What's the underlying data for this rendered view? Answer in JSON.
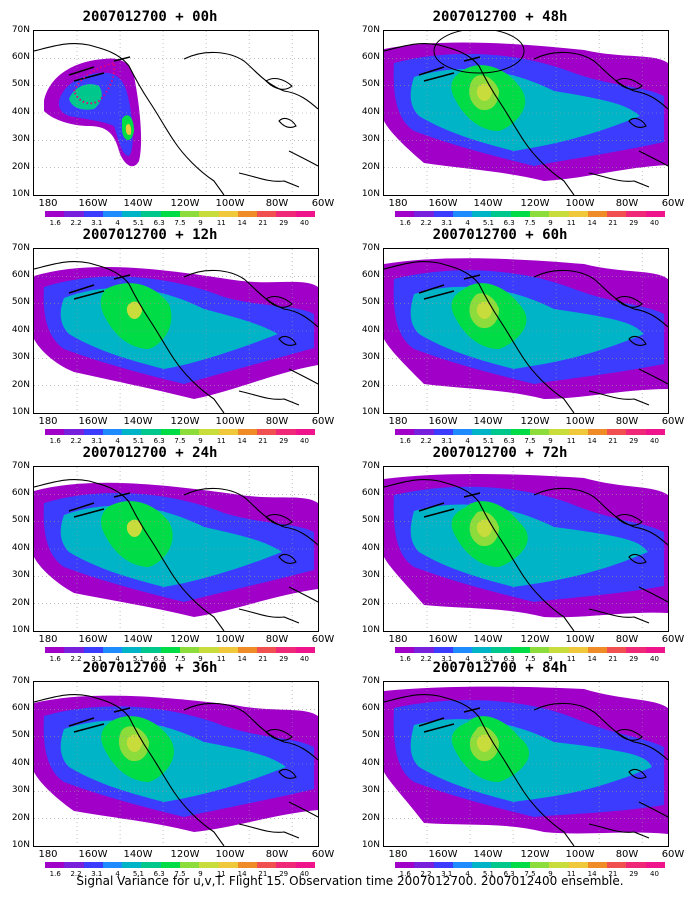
{
  "panels": [
    {
      "title": "2007012700 + 00h",
      "fill": 0
    },
    {
      "title": "2007012700 + 48h",
      "fill": 4
    },
    {
      "title": "2007012700 + 12h",
      "fill": 1
    },
    {
      "title": "2007012700 + 60h",
      "fill": 5
    },
    {
      "title": "2007012700 + 24h",
      "fill": 2
    },
    {
      "title": "2007012700 + 72h",
      "fill": 6
    },
    {
      "title": "2007012700 + 36h",
      "fill": 3
    },
    {
      "title": "2007012700 + 84h",
      "fill": 7
    }
  ],
  "lat_labels": [
    "70N",
    "60N",
    "50N",
    "40N",
    "30N",
    "20N",
    "10N"
  ],
  "lon_labels": [
    "180",
    "160W",
    "140W",
    "120W",
    "100W",
    "80W",
    "60W"
  ],
  "colorbar": {
    "labels": [
      "1.6",
      "2.2",
      "3.1",
      "4",
      "5.1",
      "6.3",
      "7.5",
      "9",
      "11",
      "14",
      "21",
      "29",
      "40"
    ],
    "colors": [
      "#a000c8",
      "#7820dc",
      "#3c3cff",
      "#1e8cff",
      "#00b4c8",
      "#00c88c",
      "#00dc46",
      "#8cdc3c",
      "#c8dc3c",
      "#f0c83c",
      "#f08c28",
      "#f05050",
      "#f02878",
      "#f0148c"
    ]
  },
  "caption": "Signal Variance for u,v,T. Flight 15. Observation time 2007012700. 2007012400 ensemble."
}
